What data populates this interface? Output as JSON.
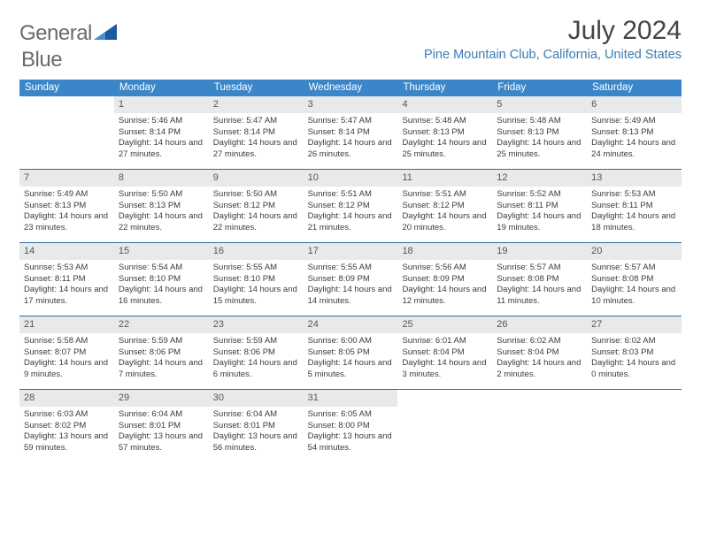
{
  "logo": {
    "text_a": "General",
    "text_b": "Blue"
  },
  "colors": {
    "header_bg": "#3a86c8",
    "location": "#3a7ab5",
    "daynum_bg": "#e8e9ea",
    "week_border": "#2f6da8",
    "logo_triangle": "#1a5a9e"
  },
  "title": "July 2024",
  "location": "Pine Mountain Club, California, United States",
  "weekdays": [
    "Sunday",
    "Monday",
    "Tuesday",
    "Wednesday",
    "Thursday",
    "Friday",
    "Saturday"
  ],
  "start_offset": 1,
  "days": [
    {
      "n": 1,
      "sr": "5:46 AM",
      "ss": "8:14 PM",
      "dl": "14 hours and 27 minutes."
    },
    {
      "n": 2,
      "sr": "5:47 AM",
      "ss": "8:14 PM",
      "dl": "14 hours and 27 minutes."
    },
    {
      "n": 3,
      "sr": "5:47 AM",
      "ss": "8:14 PM",
      "dl": "14 hours and 26 minutes."
    },
    {
      "n": 4,
      "sr": "5:48 AM",
      "ss": "8:13 PM",
      "dl": "14 hours and 25 minutes."
    },
    {
      "n": 5,
      "sr": "5:48 AM",
      "ss": "8:13 PM",
      "dl": "14 hours and 25 minutes."
    },
    {
      "n": 6,
      "sr": "5:49 AM",
      "ss": "8:13 PM",
      "dl": "14 hours and 24 minutes."
    },
    {
      "n": 7,
      "sr": "5:49 AM",
      "ss": "8:13 PM",
      "dl": "14 hours and 23 minutes."
    },
    {
      "n": 8,
      "sr": "5:50 AM",
      "ss": "8:13 PM",
      "dl": "14 hours and 22 minutes."
    },
    {
      "n": 9,
      "sr": "5:50 AM",
      "ss": "8:12 PM",
      "dl": "14 hours and 22 minutes."
    },
    {
      "n": 10,
      "sr": "5:51 AM",
      "ss": "8:12 PM",
      "dl": "14 hours and 21 minutes."
    },
    {
      "n": 11,
      "sr": "5:51 AM",
      "ss": "8:12 PM",
      "dl": "14 hours and 20 minutes."
    },
    {
      "n": 12,
      "sr": "5:52 AM",
      "ss": "8:11 PM",
      "dl": "14 hours and 19 minutes."
    },
    {
      "n": 13,
      "sr": "5:53 AM",
      "ss": "8:11 PM",
      "dl": "14 hours and 18 minutes."
    },
    {
      "n": 14,
      "sr": "5:53 AM",
      "ss": "8:11 PM",
      "dl": "14 hours and 17 minutes."
    },
    {
      "n": 15,
      "sr": "5:54 AM",
      "ss": "8:10 PM",
      "dl": "14 hours and 16 minutes."
    },
    {
      "n": 16,
      "sr": "5:55 AM",
      "ss": "8:10 PM",
      "dl": "14 hours and 15 minutes."
    },
    {
      "n": 17,
      "sr": "5:55 AM",
      "ss": "8:09 PM",
      "dl": "14 hours and 14 minutes."
    },
    {
      "n": 18,
      "sr": "5:56 AM",
      "ss": "8:09 PM",
      "dl": "14 hours and 12 minutes."
    },
    {
      "n": 19,
      "sr": "5:57 AM",
      "ss": "8:08 PM",
      "dl": "14 hours and 11 minutes."
    },
    {
      "n": 20,
      "sr": "5:57 AM",
      "ss": "8:08 PM",
      "dl": "14 hours and 10 minutes."
    },
    {
      "n": 21,
      "sr": "5:58 AM",
      "ss": "8:07 PM",
      "dl": "14 hours and 9 minutes."
    },
    {
      "n": 22,
      "sr": "5:59 AM",
      "ss": "8:06 PM",
      "dl": "14 hours and 7 minutes."
    },
    {
      "n": 23,
      "sr": "5:59 AM",
      "ss": "8:06 PM",
      "dl": "14 hours and 6 minutes."
    },
    {
      "n": 24,
      "sr": "6:00 AM",
      "ss": "8:05 PM",
      "dl": "14 hours and 5 minutes."
    },
    {
      "n": 25,
      "sr": "6:01 AM",
      "ss": "8:04 PM",
      "dl": "14 hours and 3 minutes."
    },
    {
      "n": 26,
      "sr": "6:02 AM",
      "ss": "8:04 PM",
      "dl": "14 hours and 2 minutes."
    },
    {
      "n": 27,
      "sr": "6:02 AM",
      "ss": "8:03 PM",
      "dl": "14 hours and 0 minutes."
    },
    {
      "n": 28,
      "sr": "6:03 AM",
      "ss": "8:02 PM",
      "dl": "13 hours and 59 minutes."
    },
    {
      "n": 29,
      "sr": "6:04 AM",
      "ss": "8:01 PM",
      "dl": "13 hours and 57 minutes."
    },
    {
      "n": 30,
      "sr": "6:04 AM",
      "ss": "8:01 PM",
      "dl": "13 hours and 56 minutes."
    },
    {
      "n": 31,
      "sr": "6:05 AM",
      "ss": "8:00 PM",
      "dl": "13 hours and 54 minutes."
    }
  ],
  "labels": {
    "sunrise": "Sunrise:",
    "sunset": "Sunset:",
    "daylight": "Daylight:"
  }
}
